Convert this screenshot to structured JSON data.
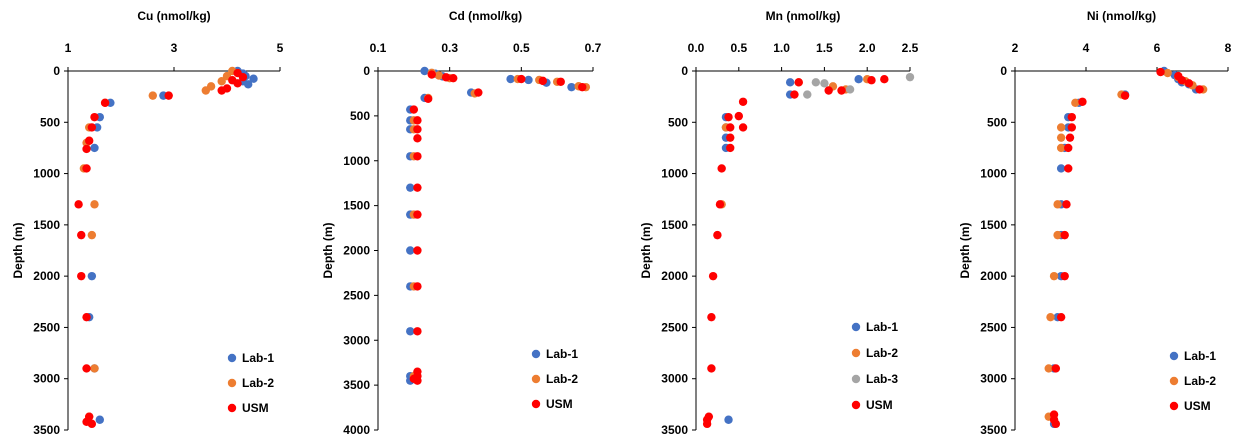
{
  "colors": {
    "Lab-1": "#4472C4",
    "Lab-2": "#ED7D31",
    "Lab-3": "#A5A5A5",
    "USM": "#FF0000",
    "axis": "#000000"
  },
  "chart_data": [
    {
      "type": "scatter",
      "title": "Cu (nmol/kg)",
      "ylabel": "Depth (m)",
      "xlim": [
        1,
        5
      ],
      "xticks": [
        "1",
        "3",
        "5"
      ],
      "xtick_values": [
        1,
        3,
        5
      ],
      "ylim": [
        0,
        3500
      ],
      "yticks": [
        "0",
        "500",
        "1000",
        "1500",
        "2000",
        "2500",
        "3000",
        "3500"
      ],
      "ytick_values": [
        0,
        500,
        1000,
        1500,
        2000,
        2500,
        3000,
        3500
      ],
      "y_inverted": true,
      "legend_position": "bottom-right",
      "series": [
        {
          "name": "Lab-1",
          "points": [
            [
              4.2,
              0
            ],
            [
              4.3,
              25
            ],
            [
              4.35,
              50
            ],
            [
              4.5,
              75
            ],
            [
              4.3,
              100
            ],
            [
              4.4,
              130
            ],
            [
              2.8,
              240
            ],
            [
              1.8,
              310
            ],
            [
              1.6,
              450
            ],
            [
              1.55,
              550
            ],
            [
              1.5,
              750
            ],
            [
              1.45,
              2000
            ],
            [
              1.4,
              2400
            ],
            [
              1.5,
              2900
            ],
            [
              1.6,
              3400
            ]
          ]
        },
        {
          "name": "Lab-2",
          "points": [
            [
              4.1,
              0
            ],
            [
              4.0,
              50
            ],
            [
              3.9,
              100
            ],
            [
              3.7,
              150
            ],
            [
              3.6,
              190
            ],
            [
              2.6,
              240
            ],
            [
              1.7,
              310
            ],
            [
              1.4,
              550
            ],
            [
              1.35,
              700
            ],
            [
              1.3,
              950
            ],
            [
              1.5,
              1300
            ],
            [
              1.45,
              1600
            ],
            [
              1.5,
              2900
            ],
            [
              1.4,
              3370
            ]
          ]
        },
        {
          "name": "USM",
          "points": [
            [
              4.2,
              20
            ],
            [
              4.3,
              60
            ],
            [
              4.1,
              90
            ],
            [
              4.2,
              120
            ],
            [
              4.0,
              170
            ],
            [
              3.9,
              190
            ],
            [
              2.9,
              240
            ],
            [
              1.7,
              310
            ],
            [
              1.5,
              450
            ],
            [
              1.45,
              550
            ],
            [
              1.4,
              680
            ],
            [
              1.35,
              760
            ],
            [
              1.35,
              950
            ],
            [
              1.2,
              1300
            ],
            [
              1.25,
              1600
            ],
            [
              1.25,
              2000
            ],
            [
              1.35,
              2400
            ],
            [
              1.35,
              2900
            ],
            [
              1.4,
              3370
            ],
            [
              1.35,
              3420
            ],
            [
              1.45,
              3440
            ]
          ]
        }
      ]
    },
    {
      "type": "scatter",
      "title": "Cd (nmol/kg)",
      "ylabel": "Depth (m)",
      "xlim": [
        0.1,
        0.7
      ],
      "xticks": [
        "0.1",
        "0.3",
        "0.5",
        "0.7"
      ],
      "xtick_values": [
        0.1,
        0.3,
        0.5,
        0.7
      ],
      "ylim": [
        0,
        4000
      ],
      "yticks": [
        "0",
        "500",
        "1000",
        "1500",
        "2000",
        "2500",
        "3000",
        "3500",
        "4000"
      ],
      "ytick_values": [
        0,
        500,
        1000,
        1500,
        2000,
        2500,
        3000,
        3500,
        4000
      ],
      "y_inverted": true,
      "legend_position": "bottom-right",
      "series": [
        {
          "name": "Lab-1",
          "points": [
            [
              0.23,
              0
            ],
            [
              0.26,
              30
            ],
            [
              0.28,
              60
            ],
            [
              0.47,
              90
            ],
            [
              0.52,
              100
            ],
            [
              0.57,
              130
            ],
            [
              0.64,
              180
            ],
            [
              0.36,
              240
            ],
            [
              0.23,
              300
            ],
            [
              0.19,
              430
            ],
            [
              0.19,
              550
            ],
            [
              0.19,
              650
            ],
            [
              0.19,
              950
            ],
            [
              0.19,
              1300
            ],
            [
              0.19,
              1600
            ],
            [
              0.19,
              2000
            ],
            [
              0.19,
              2400
            ],
            [
              0.19,
              2900
            ],
            [
              0.19,
              3400
            ],
            [
              0.19,
              3450
            ]
          ]
        },
        {
          "name": "Lab-2",
          "points": [
            [
              0.25,
              20
            ],
            [
              0.27,
              50
            ],
            [
              0.3,
              80
            ],
            [
              0.49,
              90
            ],
            [
              0.55,
              100
            ],
            [
              0.6,
              120
            ],
            [
              0.66,
              170
            ],
            [
              0.68,
              180
            ],
            [
              0.37,
              250
            ],
            [
              0.24,
              300
            ],
            [
              0.2,
              550
            ],
            [
              0.2,
              650
            ],
            [
              0.2,
              950
            ],
            [
              0.2,
              1600
            ],
            [
              0.2,
              2400
            ],
            [
              0.2,
              3400
            ]
          ]
        },
        {
          "name": "USM",
          "points": [
            [
              0.25,
              40
            ],
            [
              0.29,
              70
            ],
            [
              0.31,
              80
            ],
            [
              0.5,
              90
            ],
            [
              0.56,
              110
            ],
            [
              0.61,
              120
            ],
            [
              0.67,
              180
            ],
            [
              0.38,
              240
            ],
            [
              0.24,
              310
            ],
            [
              0.2,
              430
            ],
            [
              0.21,
              550
            ],
            [
              0.21,
              650
            ],
            [
              0.21,
              750
            ],
            [
              0.21,
              950
            ],
            [
              0.21,
              1300
            ],
            [
              0.21,
              1600
            ],
            [
              0.21,
              2000
            ],
            [
              0.21,
              2400
            ],
            [
              0.21,
              2900
            ],
            [
              0.21,
              3350
            ],
            [
              0.21,
              3400
            ],
            [
              0.2,
              3430
            ],
            [
              0.21,
              3450
            ]
          ]
        }
      ]
    },
    {
      "type": "scatter",
      "title": "Mn (nmol/kg)",
      "ylabel": "Depth (m)",
      "xlim": [
        0,
        2.5
      ],
      "xticks": [
        "0.0",
        "0.5",
        "1.0",
        "1.5",
        "2.0",
        "2.5"
      ],
      "xtick_values": [
        0,
        0.5,
        1.0,
        1.5,
        2.0,
        2.5
      ],
      "ylim": [
        0,
        3500
      ],
      "yticks": [
        "0",
        "500",
        "1000",
        "1500",
        "2000",
        "2500",
        "3000",
        "3500"
      ],
      "ytick_values": [
        0,
        500,
        1000,
        1500,
        2000,
        2500,
        3000,
        3500
      ],
      "y_inverted": true,
      "legend_position": "bottom-right",
      "series": [
        {
          "name": "Lab-1",
          "points": [
            [
              1.9,
              80
            ],
            [
              1.1,
              110
            ],
            [
              1.1,
              230
            ],
            [
              0.35,
              450
            ],
            [
              0.35,
              550
            ],
            [
              0.35,
              650
            ],
            [
              0.35,
              750
            ],
            [
              0.38,
              3400
            ]
          ]
        },
        {
          "name": "Lab-2",
          "points": [
            [
              2.0,
              80
            ],
            [
              1.2,
              110
            ],
            [
              1.6,
              150
            ],
            [
              1.75,
              180
            ],
            [
              0.35,
              550
            ],
            [
              0.3,
              1300
            ]
          ]
        },
        {
          "name": "Lab-3",
          "points": [
            [
              2.5,
              60
            ],
            [
              1.4,
              110
            ],
            [
              1.5,
              120
            ],
            [
              1.8,
              180
            ],
            [
              1.3,
              230
            ]
          ]
        },
        {
          "name": "USM",
          "points": [
            [
              2.2,
              80
            ],
            [
              2.05,
              90
            ],
            [
              1.2,
              110
            ],
            [
              1.55,
              190
            ],
            [
              1.7,
              190
            ],
            [
              1.15,
              230
            ],
            [
              0.55,
              300
            ],
            [
              0.5,
              440
            ],
            [
              0.38,
              450
            ],
            [
              0.4,
              550
            ],
            [
              0.55,
              550
            ],
            [
              0.4,
              650
            ],
            [
              0.4,
              750
            ],
            [
              0.3,
              950
            ],
            [
              0.28,
              1300
            ],
            [
              0.25,
              1600
            ],
            [
              0.2,
              2000
            ],
            [
              0.18,
              2400
            ],
            [
              0.18,
              2900
            ],
            [
              0.15,
              3370
            ],
            [
              0.13,
              3400
            ],
            [
              0.13,
              3440
            ]
          ]
        }
      ]
    },
    {
      "type": "scatter",
      "title": "Ni (nmol/kg)",
      "ylabel": "Depth (m)",
      "xlim": [
        2,
        8
      ],
      "xticks": [
        "2",
        "4",
        "6",
        "8"
      ],
      "xtick_values": [
        2,
        4,
        6,
        8
      ],
      "ylim": [
        0,
        3500
      ],
      "yticks": [
        "0",
        "500",
        "1000",
        "1500",
        "2000",
        "2500",
        "3000",
        "3500"
      ],
      "ytick_values": [
        0,
        500,
        1000,
        1500,
        2000,
        2500,
        3000,
        3500
      ],
      "y_inverted": true,
      "legend_position": "bottom-right",
      "series": [
        {
          "name": "Lab-1",
          "points": [
            [
              6.2,
              0
            ],
            [
              6.5,
              40
            ],
            [
              6.6,
              80
            ],
            [
              6.7,
              110
            ],
            [
              6.9,
              130
            ],
            [
              7.1,
              180
            ],
            [
              5.1,
              230
            ],
            [
              3.8,
              310
            ],
            [
              3.5,
              450
            ],
            [
              3.5,
              550
            ],
            [
              3.4,
              750
            ],
            [
              3.3,
              950
            ],
            [
              3.3,
              1300
            ],
            [
              3.3,
              1600
            ],
            [
              3.3,
              2000
            ],
            [
              3.2,
              2400
            ],
            [
              3.1,
              2900
            ],
            [
              3.05,
              3370
            ],
            [
              3.1,
              3440
            ]
          ]
        },
        {
          "name": "Lab-2",
          "points": [
            [
              6.3,
              20
            ],
            [
              6.6,
              60
            ],
            [
              6.8,
              100
            ],
            [
              7.0,
              140
            ],
            [
              7.3,
              180
            ],
            [
              5.0,
              230
            ],
            [
              3.7,
              310
            ],
            [
              3.3,
              550
            ],
            [
              3.3,
              650
            ],
            [
              3.3,
              750
            ],
            [
              3.2,
              1300
            ],
            [
              3.2,
              1600
            ],
            [
              3.1,
              2000
            ],
            [
              3.0,
              2400
            ],
            [
              2.95,
              2900
            ],
            [
              2.95,
              3370
            ]
          ]
        },
        {
          "name": "USM",
          "points": [
            [
              6.1,
              10
            ],
            [
              6.6,
              50
            ],
            [
              6.7,
              90
            ],
            [
              6.9,
              120
            ],
            [
              7.2,
              180
            ],
            [
              5.1,
              240
            ],
            [
              3.9,
              300
            ],
            [
              3.6,
              450
            ],
            [
              3.6,
              550
            ],
            [
              3.55,
              650
            ],
            [
              3.5,
              750
            ],
            [
              3.5,
              950
            ],
            [
              3.45,
              1300
            ],
            [
              3.4,
              1600
            ],
            [
              3.4,
              2000
            ],
            [
              3.3,
              2400
            ],
            [
              3.15,
              2900
            ],
            [
              3.1,
              3350
            ],
            [
              3.1,
              3400
            ],
            [
              3.15,
              3440
            ]
          ]
        }
      ]
    }
  ]
}
